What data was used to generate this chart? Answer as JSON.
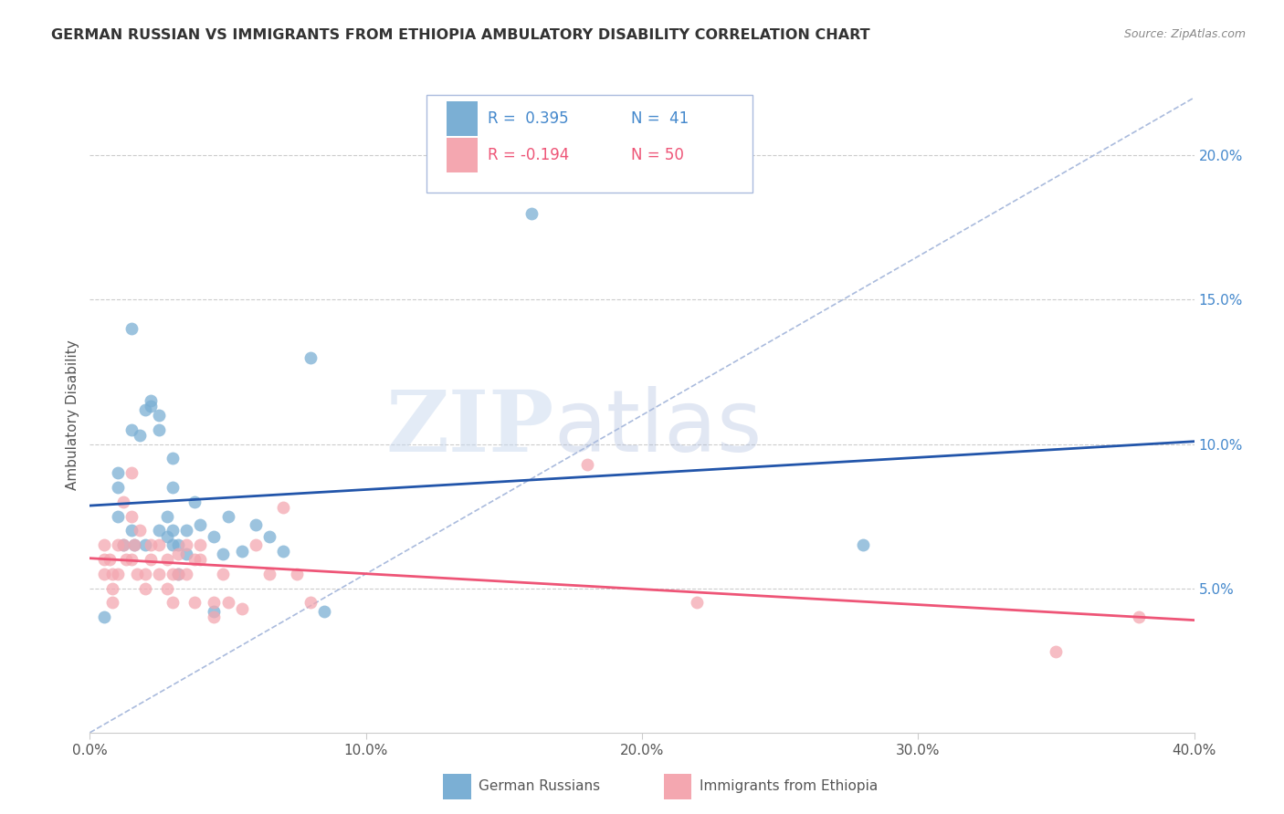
{
  "title": "GERMAN RUSSIAN VS IMMIGRANTS FROM ETHIOPIA AMBULATORY DISABILITY CORRELATION CHART",
  "source": "Source: ZipAtlas.com",
  "ylabel": "Ambulatory Disability",
  "xlim": [
    0.0,
    0.4
  ],
  "ylim": [
    0.0,
    0.22
  ],
  "xticks": [
    0.0,
    0.1,
    0.2,
    0.3,
    0.4
  ],
  "xtick_labels": [
    "0.0%",
    "10.0%",
    "20.0%",
    "30.0%",
    "40.0%"
  ],
  "yticks_right": [
    0.05,
    0.1,
    0.15,
    0.2
  ],
  "ytick_labels_right": [
    "5.0%",
    "10.0%",
    "15.0%",
    "20.0%"
  ],
  "blue_color": "#7BAFD4",
  "pink_color": "#F4A7B0",
  "blue_line_color": "#2255AA",
  "pink_line_color": "#EE5577",
  "ref_line_color": "#AABBDD",
  "legend_r1": "R =  0.395",
  "legend_n1": "N =  41",
  "legend_r2": "R = -0.194",
  "legend_n2": "N = 50",
  "legend1_label": "German Russians",
  "legend2_label": "Immigrants from Ethiopia",
  "blue_points_x": [
    0.005,
    0.01,
    0.01,
    0.01,
    0.012,
    0.015,
    0.015,
    0.015,
    0.016,
    0.018,
    0.02,
    0.02,
    0.022,
    0.022,
    0.025,
    0.025,
    0.025,
    0.028,
    0.028,
    0.03,
    0.03,
    0.03,
    0.03,
    0.032,
    0.032,
    0.035,
    0.035,
    0.038,
    0.04,
    0.045,
    0.045,
    0.048,
    0.05,
    0.055,
    0.06,
    0.065,
    0.07,
    0.08,
    0.085,
    0.16,
    0.28
  ],
  "blue_points_y": [
    0.04,
    0.085,
    0.09,
    0.075,
    0.065,
    0.14,
    0.105,
    0.07,
    0.065,
    0.103,
    0.112,
    0.065,
    0.115,
    0.113,
    0.11,
    0.105,
    0.07,
    0.075,
    0.068,
    0.095,
    0.085,
    0.07,
    0.065,
    0.065,
    0.055,
    0.07,
    0.062,
    0.08,
    0.072,
    0.068,
    0.042,
    0.062,
    0.075,
    0.063,
    0.072,
    0.068,
    0.063,
    0.13,
    0.042,
    0.18,
    0.065
  ],
  "pink_points_x": [
    0.005,
    0.005,
    0.005,
    0.007,
    0.008,
    0.008,
    0.008,
    0.01,
    0.01,
    0.012,
    0.012,
    0.013,
    0.015,
    0.015,
    0.015,
    0.016,
    0.017,
    0.018,
    0.02,
    0.02,
    0.022,
    0.022,
    0.025,
    0.025,
    0.028,
    0.028,
    0.03,
    0.03,
    0.032,
    0.032,
    0.035,
    0.035,
    0.038,
    0.038,
    0.04,
    0.04,
    0.045,
    0.045,
    0.048,
    0.05,
    0.055,
    0.06,
    0.065,
    0.07,
    0.075,
    0.08,
    0.18,
    0.22,
    0.35,
    0.38
  ],
  "pink_points_y": [
    0.065,
    0.06,
    0.055,
    0.06,
    0.055,
    0.05,
    0.045,
    0.065,
    0.055,
    0.08,
    0.065,
    0.06,
    0.09,
    0.075,
    0.06,
    0.065,
    0.055,
    0.07,
    0.055,
    0.05,
    0.065,
    0.06,
    0.065,
    0.055,
    0.06,
    0.05,
    0.055,
    0.045,
    0.062,
    0.055,
    0.065,
    0.055,
    0.06,
    0.045,
    0.065,
    0.06,
    0.045,
    0.04,
    0.055,
    0.045,
    0.043,
    0.065,
    0.055,
    0.078,
    0.055,
    0.045,
    0.093,
    0.045,
    0.028,
    0.04
  ]
}
